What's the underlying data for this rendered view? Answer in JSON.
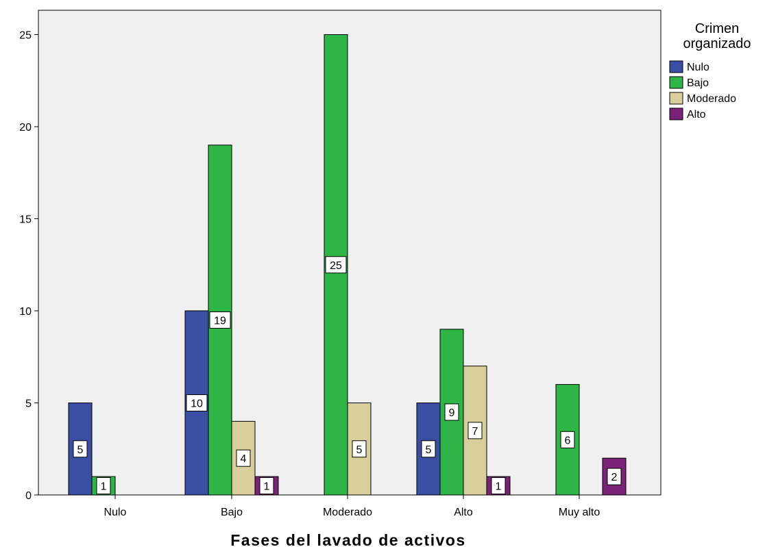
{
  "chart_data": {
    "type": "bar",
    "title": "",
    "xlabel": "Fases del lavado de activos",
    "ylabel": "",
    "categories": [
      "Nulo",
      "Bajo",
      "Moderado",
      "Alto",
      "Muy alto"
    ],
    "ylim": [
      0,
      26
    ],
    "yticks": [
      0,
      5,
      10,
      15,
      20,
      25
    ],
    "legend_title": "Crimen organizado",
    "legend_placement": "right",
    "grid": false,
    "series": [
      {
        "name": "Nulo",
        "color": "#3a4fa3",
        "values": [
          5,
          10,
          0,
          5,
          0
        ]
      },
      {
        "name": "Bajo",
        "color": "#2db646",
        "values": [
          1,
          19,
          25,
          9,
          6
        ]
      },
      {
        "name": "Moderado",
        "color": "#d9cf9d",
        "values": [
          0,
          4,
          5,
          7,
          0
        ]
      },
      {
        "name": "Alto",
        "color": "#7a2277",
        "values": [
          0,
          1,
          0,
          1,
          2
        ]
      }
    ]
  }
}
